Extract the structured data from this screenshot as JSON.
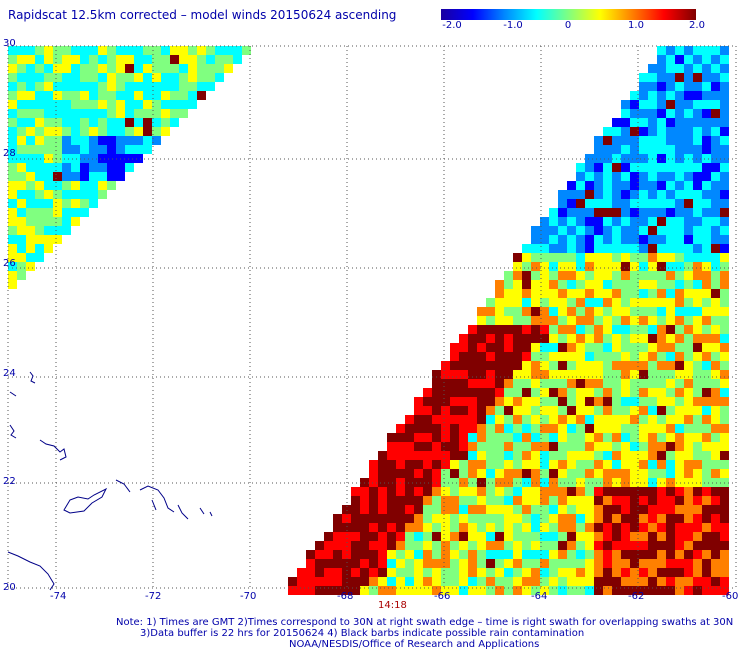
{
  "title": "Rapidscat 12.5km corrected – model winds 20150624 ascending",
  "colorbar": {
    "ticks": [
      "-2.0",
      "-1.0",
      "0",
      "1.0",
      "2.0"
    ],
    "colors": [
      "#1a00a0",
      "#0000ff",
      "#0088ff",
      "#00ffff",
      "#80ff80",
      "#ffff00",
      "#ff8000",
      "#ff0000",
      "#800000"
    ]
  },
  "axes": {
    "x_ticks": [
      "-74",
      "-72",
      "-70",
      "-68",
      "-66",
      "-64",
      "-62",
      "-60"
    ],
    "y_ticks": [
      "30",
      "28",
      "26",
      "24",
      "22",
      "20"
    ],
    "lon_range": [
      -75,
      -60
    ],
    "lat_range": [
      20,
      30
    ]
  },
  "time_label": "14:18",
  "notes": {
    "line1": "Note: 1) Times are GMT 2)Times correspond to 30N at right swath edge – time is right swath for overlapping swaths at 30N",
    "line2": "3)Data buffer is 22 hrs for 20150624 4) Black barbs indicate possible rain contamination",
    "line3": "NOAA/NESDIS/Office of Research and Applications"
  }
}
